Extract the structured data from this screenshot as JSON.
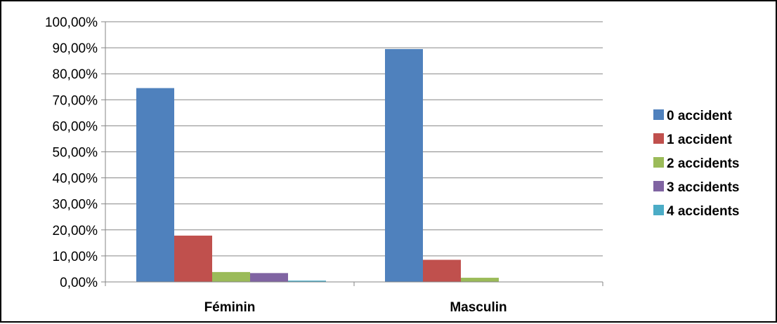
{
  "chart_data": {
    "type": "bar",
    "title": "",
    "xlabel": "",
    "ylabel": "",
    "categories": [
      "Féminin",
      "Masculin"
    ],
    "series": [
      {
        "name": "0 accident",
        "values": [
          74.5,
          89.5
        ],
        "color": "#4F81BD"
      },
      {
        "name": "1 accident",
        "values": [
          17.8,
          8.5
        ],
        "color": "#C0504D"
      },
      {
        "name": "2 accidents",
        "values": [
          3.8,
          1.6
        ],
        "color": "#9BBB59"
      },
      {
        "name": "3 accidents",
        "values": [
          3.4,
          0.0
        ],
        "color": "#8064A2"
      },
      {
        "name": "4 accidents",
        "values": [
          0.5,
          0.0
        ],
        "color": "#4BACC6"
      }
    ],
    "ylim": [
      0,
      100
    ],
    "yticks": [
      "0,00%",
      "10,00%",
      "20,00%",
      "30,00%",
      "40,00%",
      "50,00%",
      "60,00%",
      "70,00%",
      "80,00%",
      "90,00%",
      "100,00%"
    ],
    "grid": true,
    "legend": "right"
  }
}
